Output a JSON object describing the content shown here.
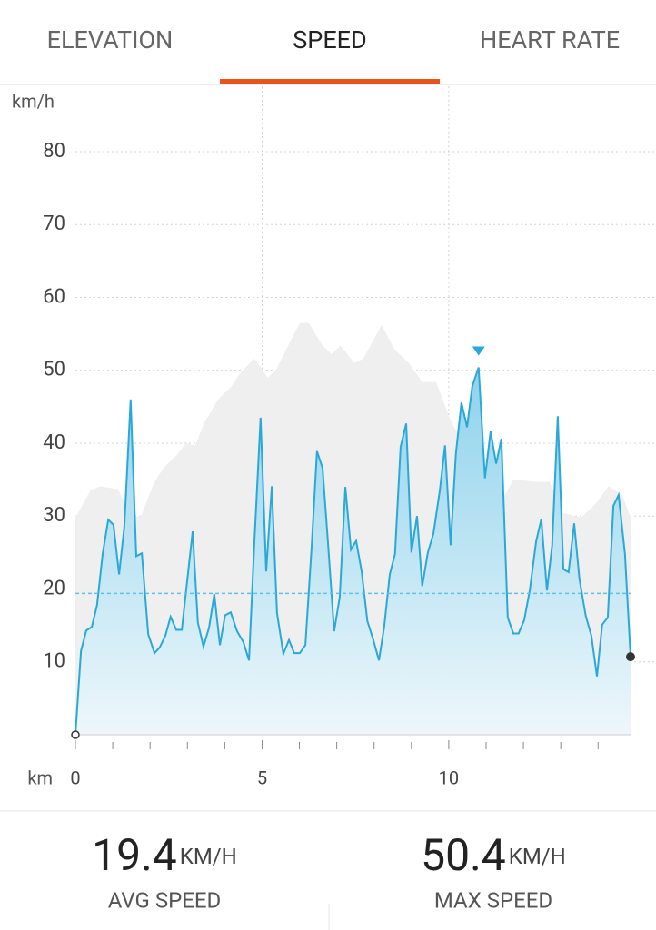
{
  "tabs": [
    {
      "label": "ELEVATION"
    },
    {
      "label": "SPEED",
      "selected": true
    },
    {
      "label": "HEART RATE"
    }
  ],
  "chart_data": {
    "type": "area",
    "y_unit": "km/h",
    "x_unit": "km",
    "x": [
      0,
      0.15,
      0.29,
      0.44,
      0.58,
      0.73,
      0.88,
      1.02,
      1.17,
      1.31,
      1.48,
      1.63,
      1.78,
      1.95,
      2.12,
      2.26,
      2.41,
      2.55,
      2.7,
      2.85,
      3.0,
      3.14,
      3.28,
      3.43,
      3.58,
      3.72,
      3.87,
      4.01,
      4.16,
      4.33,
      4.5,
      4.65,
      4.79,
      4.96,
      5.11,
      5.26,
      5.4,
      5.57,
      5.72,
      5.86,
      6.01,
      6.16,
      6.33,
      6.47,
      6.62,
      6.77,
      6.93,
      7.08,
      7.23,
      7.38,
      7.52,
      7.67,
      7.82,
      7.98,
      8.13,
      8.27,
      8.42,
      8.56,
      8.71,
      8.86,
      9.0,
      9.15,
      9.29,
      9.44,
      9.59,
      9.76,
      9.9,
      10.05,
      10.19,
      10.34,
      10.49,
      10.63,
      10.8,
      10.97,
      11.12,
      11.27,
      11.41,
      11.58,
      11.73,
      11.87,
      12.02,
      12.17,
      12.34,
      12.48,
      12.63,
      12.77,
      12.92,
      13.07,
      13.21,
      13.36,
      13.5,
      13.67,
      13.82,
      13.97,
      14.11,
      14.26,
      14.41,
      14.55,
      14.72,
      14.87
    ],
    "series": [
      {
        "color": "#2aa8d8",
        "values": [
          0,
          11.5,
          14.3,
          14.8,
          17.8,
          24.8,
          29.5,
          28.8,
          22,
          28.5,
          46,
          24.5,
          24.9,
          13.8,
          11.2,
          12,
          13.6,
          16.2,
          14.4,
          14.4,
          21.4,
          27.9,
          15.4,
          12.1,
          14.7,
          19.3,
          12.3,
          16.4,
          16.8,
          14.2,
          12.7,
          10.2,
          26,
          43.5,
          22.4,
          34.1,
          16.7,
          11.1,
          13,
          11.2,
          11.2,
          12.3,
          26,
          38.9,
          36.6,
          26,
          14.2,
          18.9,
          34,
          25.4,
          26.6,
          22.3,
          15.6,
          13,
          10.2,
          14.8,
          22,
          24.8,
          39.5,
          42.7,
          25,
          30,
          20.4,
          25,
          27.6,
          33.5,
          39.7,
          26,
          38.5,
          45.6,
          42.2,
          47.8,
          50.4,
          35.2,
          41.6,
          37.2,
          40.6,
          16.1,
          13.9,
          13.9,
          15.7,
          19.8,
          26.5,
          29.6,
          19.8,
          26,
          43.7,
          22.7,
          22.3,
          29,
          21.4,
          16.3,
          13.6,
          8,
          15.1,
          16.1,
          31.4,
          32.9,
          24.8,
          10.7
        ]
      }
    ],
    "background": {
      "color": "#efefef",
      "x": [
        0,
        0.4,
        0.66,
        1.14,
        1.5,
        1.75,
        2.12,
        2.36,
        2.73,
        2.97,
        3.21,
        3.45,
        3.82,
        4.18,
        4.43,
        4.79,
        5.16,
        5.4,
        5.64,
        6.01,
        6.25,
        6.62,
        6.86,
        7.1,
        7.47,
        7.71,
        8.2,
        8.56,
        8.93,
        9.29,
        9.66,
        10.02,
        10.39,
        10.88,
        11.36,
        11.73,
        12.34,
        12.7,
        13.07,
        13.55,
        13.92,
        14.28,
        14.65,
        14.87
      ],
      "values": [
        29.8,
        33.5,
        34.1,
        33.7,
        29.8,
        30,
        34.7,
        36.6,
        38.5,
        40,
        39.7,
        42.8,
        46,
        47.8,
        49.7,
        51.6,
        49,
        50.3,
        52.8,
        56.5,
        56.5,
        53.4,
        52.2,
        53.4,
        51,
        51.6,
        56.2,
        52.8,
        51,
        48.4,
        48.4,
        43.5,
        39.7,
        36,
        31.6,
        35,
        34.7,
        34.7,
        30.4,
        29.8,
        31.6,
        34.1,
        32.9,
        29.8
      ]
    },
    "xlim": [
      0,
      14.87
    ],
    "ylim": [
      0,
      80
    ],
    "xticks": [
      0,
      5,
      10
    ],
    "minor_xticks": [
      1,
      2,
      3,
      4,
      6,
      7,
      8,
      9,
      11,
      12,
      13,
      14
    ],
    "yticks": [
      10,
      20,
      30,
      40,
      50,
      60,
      70,
      80
    ],
    "grid": true
  },
  "stats": [
    {
      "value": 19.4,
      "unit": "KM/H",
      "label": "AVG SPEED"
    },
    {
      "value": 50.4,
      "unit": "KM/H",
      "label": "MAX SPEED"
    }
  ]
}
